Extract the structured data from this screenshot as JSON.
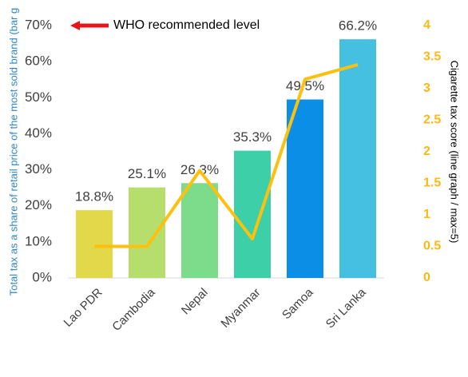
{
  "chart_data": {
    "type": "bar_line",
    "categories": [
      "Lao PDR",
      "Cambodia",
      "Nepal",
      "Myanmar",
      "Samoa",
      "Sri Lanka"
    ],
    "series": [
      {
        "type": "bar",
        "colors": [
          "#e1d84a",
          "#b6de6c",
          "#7ddc8c",
          "#3ccfa8",
          "#0b8fe6",
          "#45c0e0"
        ],
        "values": [
          18.8,
          25.1,
          26.3,
          35.3,
          49.5,
          66.2
        ],
        "value_labels": [
          "18.8%",
          "25.1%",
          "26.3%",
          "35.3%",
          "49.5%",
          "66.2%"
        ]
      },
      {
        "type": "line",
        "axis": "y2",
        "color": "#fcc10e",
        "values": [
          0.5,
          0.5,
          1.7,
          0.62,
          3.15,
          3.38
        ]
      }
    ],
    "ylabel": "Total tax as a share of retail price of the most sold brand (bar g",
    "y2label": "Cigarette tax score (line graph / max=5)",
    "ylim": [
      0,
      70
    ],
    "yticks": [
      {
        "value": 0,
        "label": "0%"
      },
      {
        "value": 10,
        "label": "10%"
      },
      {
        "value": 20,
        "label": "20%"
      },
      {
        "value": 30,
        "label": "30%"
      },
      {
        "value": 40,
        "label": "40%"
      },
      {
        "value": 50,
        "label": "50%"
      },
      {
        "value": 60,
        "label": "60%"
      },
      {
        "value": 70,
        "label": "70%"
      }
    ],
    "y2lim": [
      0,
      4
    ],
    "y2ticks": [
      0,
      0.5,
      1,
      1.5,
      2,
      2.5,
      3,
      3.5,
      4
    ],
    "annotation": {
      "text": "WHO recommended level",
      "value": 70,
      "color": "#e8141b"
    }
  }
}
